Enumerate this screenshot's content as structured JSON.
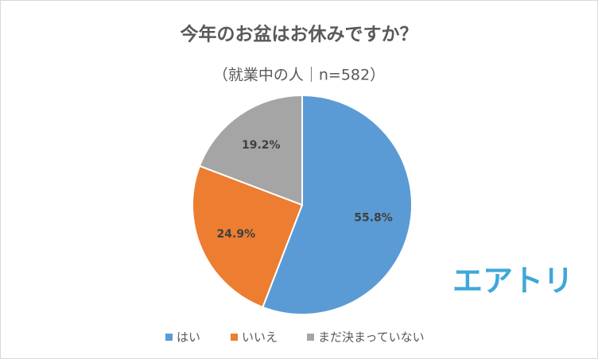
{
  "chart_data": {
    "type": "pie",
    "title": "今年のお盆はお休みですか？",
    "subtitle": "（就業中の人｜n=582）",
    "categories": [
      "はい",
      "いいえ",
      "まだ決まっていない"
    ],
    "values": [
      55.8,
      24.9,
      19.2
    ],
    "value_labels": [
      "55.8%",
      "24.9%",
      "19.2%"
    ],
    "colors": [
      "#5b9bd5",
      "#ed7d31",
      "#a5a5a5"
    ],
    "legend": "bottom"
  },
  "logo": "エアトリ"
}
